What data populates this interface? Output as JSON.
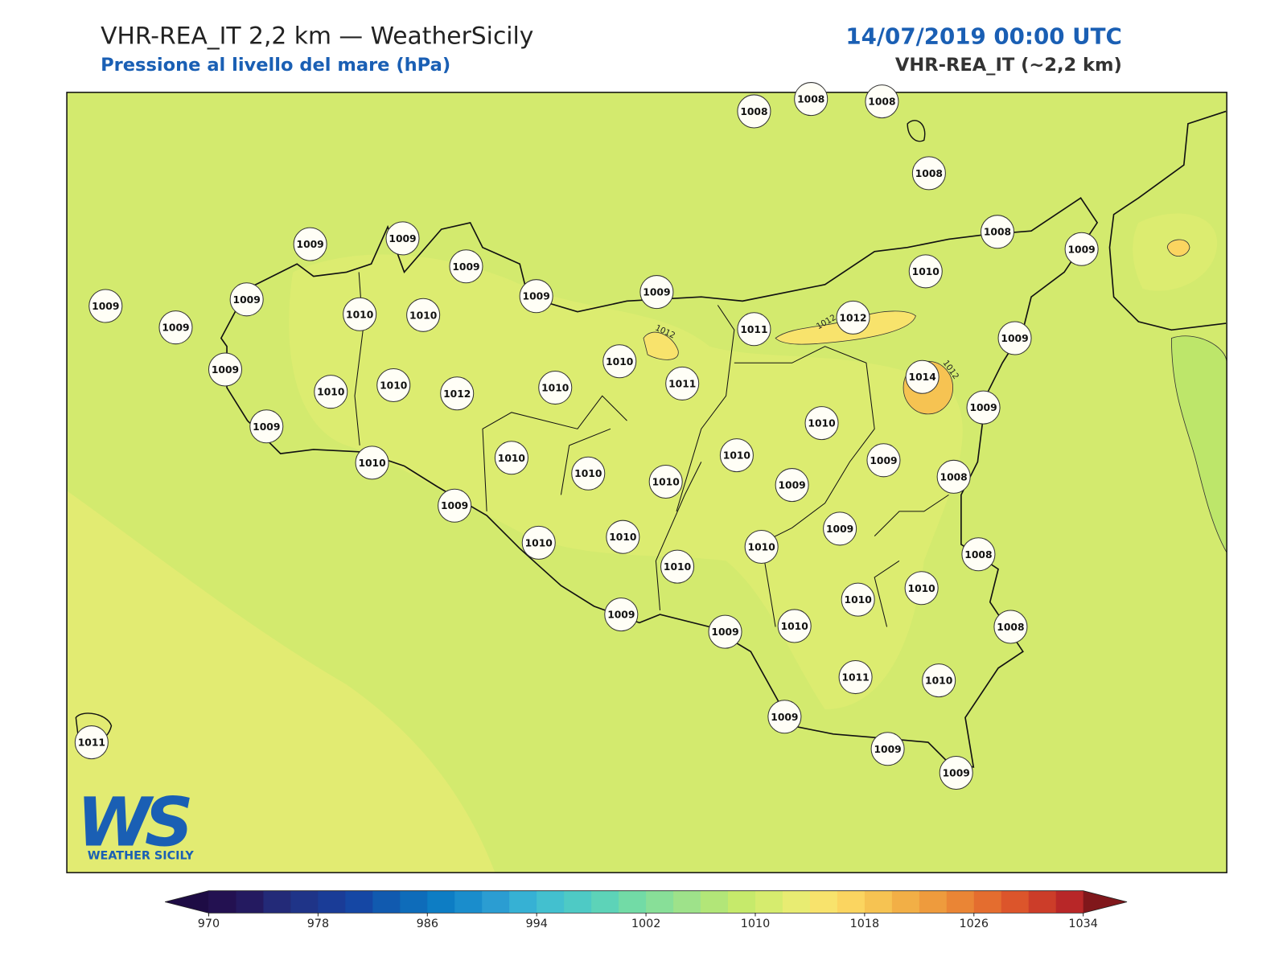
{
  "header": {
    "title": "VHR-REA_IT 2,2 km — WeatherSicily",
    "subtitle": "Pressione al livello del mare (hPa)",
    "datetime": "14/07/2019 00:00 UTC",
    "model": "VHR-REA_IT (~2,2 km)"
  },
  "stations": [
    1008,
    1008,
    1008,
    1008,
    1008,
    1009,
    1010,
    1009,
    1009,
    1009,
    1009,
    1009,
    1009,
    1009,
    1009,
    1010,
    1010,
    1009,
    1010,
    1010,
    1012,
    1010,
    1010,
    1011,
    1011,
    1012,
    1009,
    1014,
    1009,
    1010,
    1009,
    1010,
    1010,
    1010,
    1010,
    1010,
    1009,
    1009,
    1008,
    1009,
    1010,
    1010,
    1010,
    1010,
    1009,
    1008,
    1010,
    1010,
    1008,
    1009,
    1009,
    1010,
    1011,
    1010,
    1009,
    1009,
    1009,
    1011
  ],
  "contour_labels": [
    1012,
    1012,
    1012
  ],
  "colorbar": {
    "range": [
      970,
      1034
    ],
    "ticks": [
      970,
      978,
      986,
      994,
      1002,
      1010,
      1018,
      1026,
      1034
    ],
    "colors": [
      "#231151",
      "#241a60",
      "#232a78",
      "#1f3488",
      "#1a3c97",
      "#1547a4",
      "#115aaf",
      "#0e6cba",
      "#0d7dc4",
      "#1a8dcc",
      "#2b9dd2",
      "#36b1d4",
      "#43c0cf",
      "#4ecac5",
      "#5dd3b8",
      "#72dba6",
      "#88df98",
      "#9ee28a",
      "#b2e678",
      "#c6ea6b",
      "#d6ec6e",
      "#e8ec72",
      "#f8e36c",
      "#fbd560",
      "#f6c352",
      "#f2af46",
      "#ee9b3d",
      "#ea8535",
      "#e46d2f",
      "#dc552b",
      "#cc3d29",
      "#b82728"
    ],
    "under": "#1e0c45",
    "over": "#80171b"
  },
  "logo": {
    "mark": "WS",
    "name": "WEATHER SICILY"
  }
}
